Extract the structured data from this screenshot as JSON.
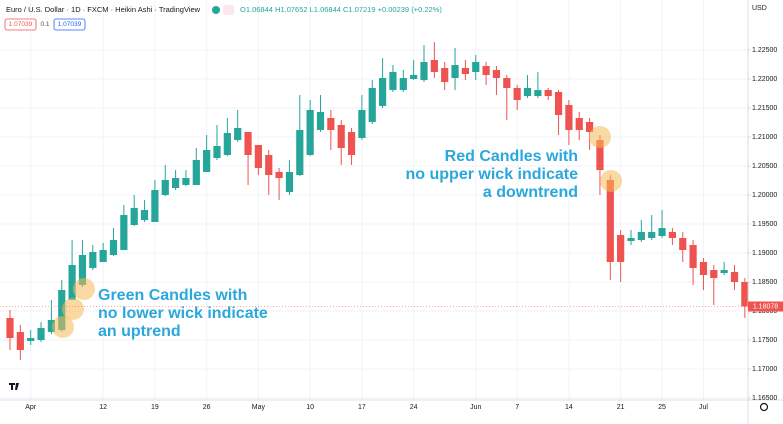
{
  "chart_data": {
    "type": "candlestick",
    "title": "Euro / U.S. Dollar · 1D · FXCM · Heikin Ashi · TradingView",
    "ohlc_text": "O1.06844 H1.07652 L1.06844 C1.07219 +0.00239 (+0.22%)",
    "badges": [
      "1.07039",
      "0.1",
      "1.07039"
    ],
    "currency": "USD",
    "annotations": [
      [
        "Red Candles with",
        "no upper wick indicate",
        "a downtrend"
      ],
      [
        "Green Candles with",
        "no lower wick indicate",
        "an uptrend"
      ]
    ],
    "up_color": "#26a69a",
    "down_color": "#ef5350",
    "grid": true,
    "categories": [
      null,
      null,
      "Apr",
      null,
      null,
      null,
      null,
      null,
      null,
      "12",
      null,
      null,
      null,
      null,
      "19",
      null,
      null,
      null,
      null,
      "26",
      null,
      null,
      null,
      null,
      "May",
      null,
      null,
      null,
      null,
      "10",
      null,
      null,
      null,
      null,
      "17",
      null,
      null,
      null,
      null,
      "24",
      null,
      null,
      null,
      null,
      null,
      "Jun",
      null,
      null,
      null,
      "7",
      null,
      null,
      null,
      null,
      "14",
      null,
      null,
      null,
      null,
      "21",
      null,
      null,
      null,
      "25",
      null,
      null,
      null,
      "Jul",
      null,
      null,
      null,
      null
    ],
    "open": [
      1.1788,
      1.17638,
      1.17483,
      1.175,
      1.17638,
      1.17672,
      1.1819,
      1.18448,
      1.18742,
      1.18845,
      1.18966,
      1.19052,
      1.19483,
      1.19569,
      1.19535,
      1.2,
      1.20121,
      1.20173,
      1.20173,
      1.20397,
      1.20638,
      1.2069,
      1.20948,
      1.21086,
      1.20862,
      1.2069,
      1.20397,
      1.20052,
      1.20345,
      1.2069,
      1.21121,
      1.21328,
      1.21207,
      1.21086,
      1.20983,
      1.21259,
      1.21535,
      1.2181,
      1.2181,
      1.22,
      1.21983,
      1.22328,
      1.2219,
      1.22017,
      1.2219,
      1.22121,
      1.22224,
      1.22155,
      1.22017,
      1.21845,
      1.21707,
      1.21707,
      1.2181,
      1.21776,
      1.21552,
      1.21328,
      1.21259,
      1.20948,
      1.20259,
      1.19311,
      1.19207,
      1.19224,
      1.19259,
      1.19293,
      1.19362,
      1.19259,
      1.19138,
      1.18845,
      1.18707,
      1.18655,
      1.18673,
      1.185
    ],
    "high": [
      1.18017,
      1.17759,
      1.17672,
      1.17811,
      1.1819,
      1.18535,
      1.19224,
      1.19224,
      1.19138,
      1.19173,
      1.19431,
      1.19828,
      1.2,
      1.19914,
      1.20259,
      1.20517,
      1.20431,
      1.20431,
      1.2081,
      1.21035,
      1.21207,
      1.21328,
      1.21466,
      1.21086,
      1.20862,
      1.20776,
      1.20466,
      1.20604,
      1.21724,
      1.21638,
      1.21724,
      1.21466,
      1.21293,
      1.21155,
      1.21724,
      1.21983,
      1.22362,
      1.22241,
      1.22155,
      1.22328,
      1.22586,
      1.22638,
      1.22293,
      1.22534,
      1.22328,
      1.22414,
      1.22293,
      1.22224,
      1.22069,
      1.21897,
      1.22069,
      1.22121,
      1.21845,
      1.2181,
      1.21638,
      1.21431,
      1.21328,
      1.21035,
      1.20345,
      1.19397,
      1.19397,
      1.19569,
      1.19655,
      1.19742,
      1.19431,
      1.19362,
      1.19224,
      1.18914,
      1.18793,
      1.18845,
      1.18793,
      1.18569
    ],
    "low": [
      1.17328,
      1.17156,
      1.17414,
      1.17466,
      1.17604,
      1.17638,
      1.1819,
      1.18414,
      1.18707,
      1.18845,
      1.18948,
      1.19052,
      1.19466,
      1.19535,
      1.19535,
      1.19983,
      1.20086,
      1.20155,
      1.20173,
      1.20397,
      1.20604,
      1.20672,
      1.20914,
      1.20173,
      1.20345,
      1.2,
      1.19914,
      1.2,
      1.20328,
      1.20672,
      1.21086,
      1.20776,
      1.20517,
      1.20517,
      1.20948,
      1.21224,
      1.215,
      1.21776,
      1.21776,
      1.21983,
      1.21948,
      1.22017,
      1.2181,
      1.2181,
      1.21983,
      1.21983,
      1.21897,
      1.21724,
      1.21293,
      1.21466,
      1.21672,
      1.21672,
      1.21638,
      1.21035,
      1.20862,
      1.20948,
      1.20776,
      1.2,
      1.18535,
      1.185,
      1.19138,
      1.1919,
      1.19224,
      1.19259,
      1.19138,
      1.18845,
      1.18448,
      1.18362,
      1.18104,
      1.18621,
      1.18362,
      1.1788
    ],
    "close": [
      1.17535,
      1.17328,
      1.17535,
      1.17707,
      1.17845,
      1.18362,
      1.18793,
      1.18966,
      1.19017,
      1.19052,
      1.19224,
      1.19655,
      1.19776,
      1.19742,
      1.20086,
      1.20259,
      1.20293,
      1.20293,
      1.20604,
      1.20776,
      1.20845,
      1.21069,
      1.21155,
      1.2069,
      1.20466,
      1.20345,
      1.20293,
      1.20397,
      1.21121,
      1.21466,
      1.21431,
      1.21121,
      1.2081,
      1.2069,
      1.21466,
      1.21845,
      1.22017,
      1.22121,
      1.22017,
      1.22069,
      1.22293,
      1.22121,
      1.21948,
      1.22241,
      1.22086,
      1.22293,
      1.22069,
      1.22017,
      1.21845,
      1.21638,
      1.21845,
      1.2181,
      1.21707,
      1.21379,
      1.21121,
      1.21121,
      1.21086,
      1.20431,
      1.18845,
      1.18845,
      1.19259,
      1.19362,
      1.19362,
      1.19431,
      1.19259,
      1.19052,
      1.18742,
      1.18621,
      1.18569,
      1.18707,
      1.185,
      1.18078
    ],
    "ylim": [
      1.16466,
      1.23362
    ],
    "yticks": [
      {
        "value": 1.165,
        "label": "1.16500"
      },
      {
        "value": 1.17,
        "label": "1.17000"
      },
      {
        "value": 1.175,
        "label": "1.17500"
      },
      {
        "value": 1.18,
        "label": "1.18000"
      },
      {
        "value": 1.185,
        "label": "1.18500"
      },
      {
        "value": 1.19,
        "label": "1.19000"
      },
      {
        "value": 1.195,
        "label": "1.19500"
      },
      {
        "value": 1.2,
        "label": "1.20000"
      },
      {
        "value": 1.205,
        "label": "1.20500"
      },
      {
        "value": 1.21,
        "label": "1.21000"
      },
      {
        "value": 1.215,
        "label": "1.21500"
      },
      {
        "value": 1.22,
        "label": "1.22000"
      },
      {
        "value": 1.225,
        "label": "1.22500"
      }
    ]
  }
}
